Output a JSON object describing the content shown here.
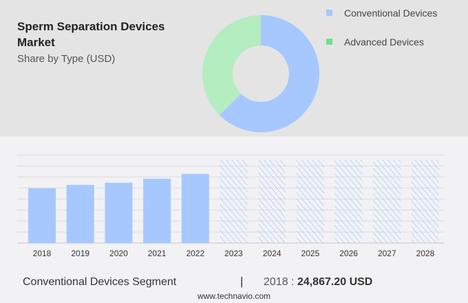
{
  "header": {
    "title": "Sperm Separation Devices Market",
    "subtitle": "Share by Type (USD)"
  },
  "colors": {
    "conventional": "#a6c8ff",
    "advanced": "#b4edc0",
    "advanced_legend": "#6fe08f"
  },
  "legend": [
    {
      "label": "Conventional Devices",
      "color": "#a6c8ff"
    },
    {
      "label": "Advanced Devices",
      "color": "#6fe08f"
    }
  ],
  "chart_data": [
    {
      "type": "pie",
      "donut": true,
      "slices": [
        {
          "name": "Conventional Devices",
          "value": 62.5,
          "color": "#a6c8ff"
        },
        {
          "name": "Advanced Devices",
          "value": 37.5,
          "color": "#b4edc0"
        }
      ]
    },
    {
      "type": "bar",
      "categories": [
        "2018",
        "2019",
        "2020",
        "2021",
        "2022",
        "2023",
        "2024",
        "2025",
        "2026",
        "2027",
        "2028"
      ],
      "values": [
        24867.2,
        26400,
        27400,
        29200,
        31400,
        null,
        null,
        null,
        null,
        null,
        null
      ],
      "forecast": [
        "2023",
        "2024",
        "2025",
        "2026",
        "2027",
        "2028"
      ],
      "ylim": [
        0,
        40000
      ],
      "grid": true,
      "color": "#a6c8ff"
    }
  ],
  "footer": {
    "segment": "Conventional Devices Segment",
    "separator": "|",
    "year": "2018",
    "sep2": " : ",
    "value": "24,867.20 USD",
    "site": "www.technavio.com"
  }
}
